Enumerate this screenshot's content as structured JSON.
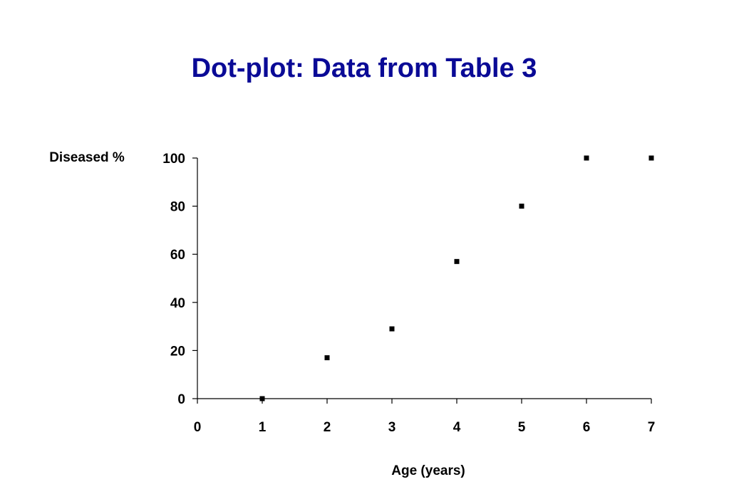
{
  "chart_data": {
    "type": "scatter",
    "title": "Dot-plot: Data from Table 3",
    "y_label": "Diseased %",
    "x_label": "Age (years)",
    "x": [
      1,
      2,
      3,
      4,
      5,
      6,
      7
    ],
    "values": [
      0,
      17,
      29,
      57,
      80,
      100,
      100
    ],
    "color": "#000000",
    "xlim": [
      0,
      7
    ],
    "xticks": [
      0,
      1,
      2,
      3,
      4,
      5,
      6,
      7
    ],
    "ylim": [
      0,
      100
    ],
    "yticks": [
      0,
      20,
      40,
      60,
      80,
      100
    ],
    "grid": false
  }
}
